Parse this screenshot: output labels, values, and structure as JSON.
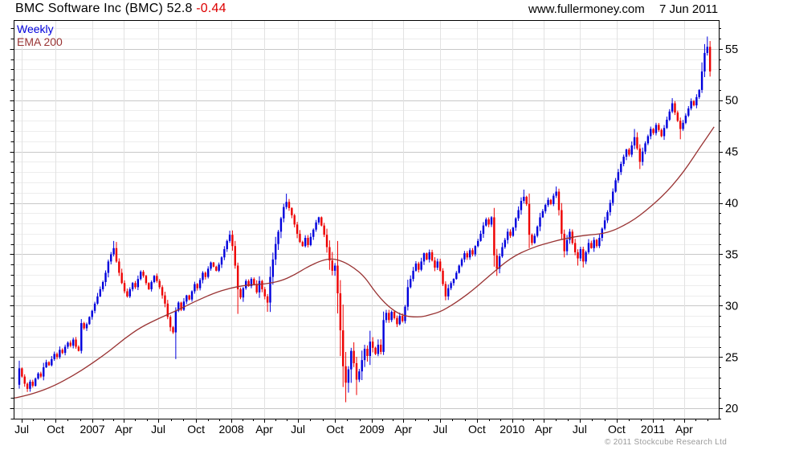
{
  "header": {
    "title_main": "BMC Software Inc (BMC) 52.8 ",
    "title_change": "-0.44",
    "website": "www.fullermoney.com",
    "date": "7 Jun 2011"
  },
  "legend": {
    "timeframe": "Weekly",
    "overlay": "EMA 200"
  },
  "footer": {
    "copyright": "© 2011 Stockcube Research Ltd"
  },
  "colors": {
    "up": "#0000dd",
    "down": "#ee0000",
    "ema": "#993333",
    "grid_minor": "#ededed",
    "grid_major": "#c8c8c8",
    "grid_vertical": "#e2e2e2",
    "axis": "#000000",
    "change_text": "#dd0000",
    "copyright_text": "#9a9a9a"
  },
  "chart_data": {
    "type": "candlestick",
    "title": "BMC Software Inc (BMC)",
    "timeframe": "Weekly",
    "overlay": "EMA 200",
    "last_price": 52.8,
    "change": -0.44,
    "date_range": "Jul 2006 - Jun 2011",
    "y_axis": {
      "min": 19.0,
      "max": 57.8,
      "minor_step": 1,
      "labels": [
        20,
        25,
        30,
        35,
        40,
        45,
        50,
        55
      ]
    },
    "x_axis": {
      "quarters": [
        {
          "label": "Jul",
          "week": 0.9
        },
        {
          "label": "Oct",
          "week": 13.4
        },
        {
          "label": "2007",
          "week": 27.1
        },
        {
          "label": "Apr",
          "week": 38.7
        },
        {
          "label": "Jul",
          "week": 51.5
        },
        {
          "label": "Oct",
          "week": 65.5
        },
        {
          "label": "2008",
          "week": 78.6
        },
        {
          "label": "Apr",
          "week": 90.8
        },
        {
          "label": "Jul",
          "week": 103.3
        },
        {
          "label": "Oct",
          "week": 117.0
        },
        {
          "label": "2009",
          "week": 130.7
        },
        {
          "label": "Apr",
          "week": 142.3
        },
        {
          "label": "Jul",
          "week": 156.0
        },
        {
          "label": "Oct",
          "week": 169.6
        },
        {
          "label": "2010",
          "week": 182.7
        },
        {
          "label": "Apr",
          "week": 194.3
        },
        {
          "label": "Jul",
          "week": 207.7
        },
        {
          "label": "Oct",
          "week": 221.4
        },
        {
          "label": "2011",
          "week": 234.8
        },
        {
          "label": "Apr",
          "week": 246.4
        }
      ]
    },
    "first_open": 22.3,
    "weekly_closes": [
      23.9,
      23.1,
      22.4,
      21.9,
      22.6,
      22.2,
      22.9,
      23.4,
      23.1,
      24.0,
      24.5,
      24.2,
      24.8,
      25.3,
      25.0,
      25.7,
      25.4,
      26.0,
      26.4,
      26.1,
      26.7,
      26.0,
      25.6,
      28.3,
      27.8,
      28.2,
      28.9,
      29.5,
      30.2,
      30.9,
      31.6,
      32.3,
      33.2,
      34.3,
      35.0,
      35.6,
      34.3,
      33.2,
      32.2,
      31.4,
      30.9,
      31.6,
      32.2,
      31.8,
      32.6,
      33.3,
      32.9,
      32.2,
      31.6,
      32.3,
      32.9,
      32.4,
      31.8,
      31.0,
      30.2,
      28.9,
      27.9,
      27.4,
      29.5,
      30.3,
      29.6,
      30.4,
      31.0,
      30.6,
      31.4,
      32.1,
      31.7,
      32.5,
      33.2,
      32.8,
      33.6,
      34.2,
      33.8,
      33.4,
      34.0,
      34.7,
      35.5,
      36.3,
      36.9,
      35.8,
      33.9,
      31.6,
      30.8,
      31.7,
      32.4,
      31.9,
      32.6,
      32.1,
      31.3,
      32.4,
      31.6,
      30.9,
      30.3,
      32.8,
      34.5,
      36.0,
      37.2,
      38.5,
      39.6,
      40.1,
      39.5,
      38.8,
      37.9,
      37.0,
      36.2,
      35.8,
      36.6,
      35.9,
      36.7,
      37.4,
      38.1,
      38.6,
      37.8,
      36.9,
      35.7,
      34.4,
      33.4,
      33.9,
      31.2,
      27.6,
      24.1,
      22.5,
      23.8,
      25.6,
      24.4,
      22.8,
      23.6,
      24.7,
      25.8,
      25.1,
      26.5,
      25.9,
      25.3,
      26.2,
      25.5,
      28.6,
      29.3,
      28.6,
      29.4,
      28.8,
      28.2,
      29.0,
      28.5,
      29.9,
      31.8,
      32.6,
      33.4,
      34.1,
      33.5,
      34.3,
      35.1,
      34.5,
      35.2,
      34.4,
      33.7,
      34.3,
      33.4,
      32.1,
      30.9,
      31.7,
      32.2,
      32.6,
      33.2,
      33.9,
      34.5,
      35.1,
      34.7,
      35.4,
      35.0,
      35.8,
      36.3,
      37.0,
      37.8,
      38.4,
      37.9,
      38.6,
      34.9,
      33.6,
      34.8,
      35.7,
      36.4,
      37.2,
      36.8,
      37.6,
      38.5,
      39.3,
      40.2,
      40.6,
      39.9,
      36.9,
      36.1,
      36.8,
      37.7,
      38.6,
      39.2,
      39.8,
      40.3,
      39.9,
      40.7,
      41.1,
      39.3,
      37.0,
      35.3,
      36.4,
      37.2,
      36.1,
      35.2,
      34.6,
      35.5,
      34.3,
      35.2,
      36.1,
      35.6,
      36.4,
      35.8,
      36.6,
      37.5,
      38.3,
      39.1,
      40.0,
      41.1,
      42.2,
      43.0,
      43.8,
      44.5,
      45.2,
      44.7,
      45.6,
      46.4,
      45.3,
      44.0,
      45.0,
      45.8,
      46.5,
      47.2,
      46.8,
      47.6,
      47.1,
      46.5,
      47.3,
      48.1,
      48.9,
      49.7,
      48.8,
      48.0,
      47.2,
      47.8,
      48.5,
      49.2,
      49.9,
      49.5,
      50.3,
      51.0,
      52.8,
      54.6,
      55.2,
      52.8
    ],
    "high_volatility_weeks": [
      114,
      135
    ],
    "wick_overrides": {
      "3": {
        "low": 21.6
      },
      "35": {
        "high": 36.3
      },
      "58": {
        "low": 24.8
      },
      "78": {
        "high": 37.3
      },
      "81": {
        "low": 29.2
      },
      "92": {
        "low": 29.4
      },
      "99": {
        "high": 40.9
      },
      "121": {
        "low": 20.6
      },
      "125": {
        "low": 21.3
      },
      "135": {
        "low": 25.2
      },
      "176": {
        "low": 33.8
      },
      "177": {
        "low": 32.9
      },
      "187": {
        "high": 41.3
      },
      "189": {
        "low": 35.6
      },
      "199": {
        "high": 41.6
      },
      "202": {
        "low": 34.7
      },
      "207": {
        "low": 33.9
      },
      "228": {
        "high": 47.2
      },
      "230": {
        "low": 43.3
      },
      "242": {
        "high": 50.2
      },
      "245": {
        "low": 46.2
      },
      "255": {
        "high": 56.2
      },
      "256": {
        "low": 52.3
      }
    },
    "ema200_anchors": [
      [
        -2,
        21.0
      ],
      [
        0,
        21.1
      ],
      [
        6,
        21.5
      ],
      [
        13,
        22.2
      ],
      [
        20,
        23.2
      ],
      [
        26,
        24.2
      ],
      [
        33,
        25.5
      ],
      [
        39,
        26.8
      ],
      [
        45,
        27.9
      ],
      [
        52,
        28.8
      ],
      [
        59,
        29.6
      ],
      [
        65,
        30.4
      ],
      [
        72,
        31.2
      ],
      [
        78,
        31.7
      ],
      [
        84,
        32.0
      ],
      [
        91,
        32.1
      ],
      [
        97,
        32.4
      ],
      [
        102,
        33.0
      ],
      [
        107,
        33.8
      ],
      [
        112,
        34.4
      ],
      [
        116,
        34.6
      ],
      [
        120,
        34.3
      ],
      [
        124,
        33.7
      ],
      [
        128,
        32.8
      ],
      [
        132,
        31.3
      ],
      [
        136,
        30.1
      ],
      [
        140,
        29.3
      ],
      [
        143,
        29.0
      ],
      [
        146,
        28.9
      ],
      [
        149,
        28.9
      ],
      [
        152,
        29.1
      ],
      [
        156,
        29.4
      ],
      [
        160,
        30.0
      ],
      [
        164,
        30.7
      ],
      [
        168,
        31.5
      ],
      [
        172,
        32.4
      ],
      [
        176,
        33.3
      ],
      [
        180,
        34.2
      ],
      [
        184,
        34.9
      ],
      [
        188,
        35.4
      ],
      [
        192,
        35.8
      ],
      [
        196,
        36.1
      ],
      [
        200,
        36.4
      ],
      [
        204,
        36.6
      ],
      [
        208,
        36.8
      ],
      [
        212,
        36.9
      ],
      [
        216,
        37.0
      ],
      [
        220,
        37.3
      ],
      [
        224,
        37.8
      ],
      [
        228,
        38.4
      ],
      [
        232,
        39.2
      ],
      [
        236,
        40.1
      ],
      [
        240,
        41.1
      ],
      [
        244,
        42.3
      ],
      [
        248,
        43.7
      ],
      [
        252,
        45.3
      ],
      [
        257.5,
        47.4
      ]
    ]
  }
}
